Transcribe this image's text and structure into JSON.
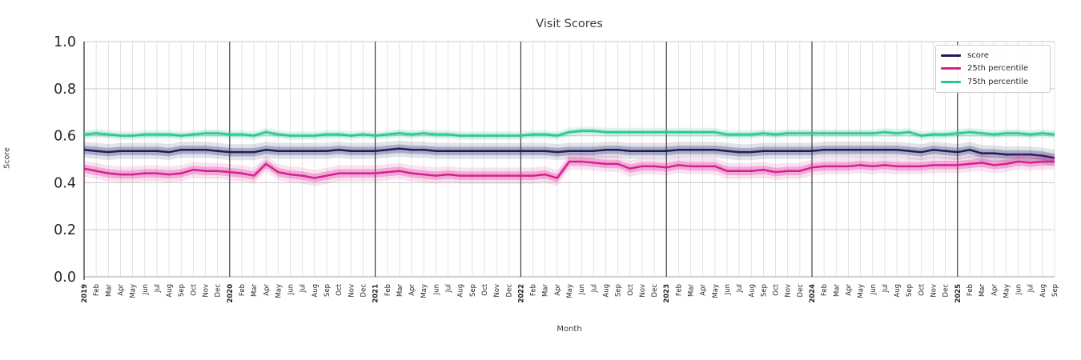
{
  "chart_data": {
    "type": "line",
    "title": "Visit Scores",
    "xlabel": "Month",
    "ylabel": "Score",
    "ylim": [
      0.0,
      1.0
    ],
    "yticks": [
      "0.0",
      "0.2",
      "0.4",
      "0.6",
      "0.8",
      "1.0"
    ],
    "grid": true,
    "legend_position": "upper right",
    "x_labels": [
      "2019",
      "Feb",
      "Mar",
      "Apr",
      "May",
      "Jun",
      "Jul",
      "Aug",
      "Sep",
      "Oct",
      "Nov",
      "Dec",
      "2020",
      "Feb",
      "Mar",
      "Apr",
      "May",
      "Jun",
      "Jul",
      "Aug",
      "Sep",
      "Oct",
      "Nov",
      "Dec",
      "2021",
      "Feb",
      "Mar",
      "Apr",
      "May",
      "Jun",
      "Jul",
      "Aug",
      "Sep",
      "Oct",
      "Nov",
      "Dec",
      "2022",
      "Feb",
      "Mar",
      "Apr",
      "May",
      "Jun",
      "Jul",
      "Aug",
      "Sep",
      "Oct",
      "Nov",
      "Dec",
      "2023",
      "Feb",
      "Mar",
      "Apr",
      "May",
      "Jun",
      "Jul",
      "Aug",
      "Sep",
      "Oct",
      "Nov",
      "Dec",
      "2024",
      "Feb",
      "Mar",
      "Apr",
      "May",
      "Jun",
      "Jul",
      "Aug",
      "Sep",
      "Oct",
      "Nov",
      "Dec",
      "2025",
      "Feb",
      "Mar",
      "Apr",
      "May",
      "Jun",
      "Jul",
      "Aug",
      "Sep"
    ],
    "year_line_indices": [
      12,
      24,
      36,
      48,
      60,
      72
    ],
    "series": [
      {
        "name": "score",
        "color": "#1d1d5c",
        "band_delta": 0.018,
        "values": [
          0.54,
          0.535,
          0.53,
          0.535,
          0.535,
          0.535,
          0.535,
          0.53,
          0.54,
          0.54,
          0.54,
          0.535,
          0.53,
          0.53,
          0.53,
          0.54,
          0.535,
          0.535,
          0.535,
          0.535,
          0.535,
          0.54,
          0.535,
          0.535,
          0.535,
          0.54,
          0.545,
          0.54,
          0.54,
          0.535,
          0.535,
          0.535,
          0.535,
          0.535,
          0.535,
          0.535,
          0.535,
          0.535,
          0.535,
          0.53,
          0.535,
          0.535,
          0.535,
          0.54,
          0.54,
          0.535,
          0.535,
          0.535,
          0.535,
          0.54,
          0.54,
          0.54,
          0.54,
          0.535,
          0.53,
          0.53,
          0.535,
          0.535,
          0.535,
          0.535,
          0.535,
          0.54,
          0.54,
          0.54,
          0.54,
          0.54,
          0.54,
          0.54,
          0.535,
          0.53,
          0.54,
          0.535,
          0.53,
          0.54,
          0.525,
          0.525,
          0.52,
          0.52,
          0.52,
          0.515,
          0.505
        ]
      },
      {
        "name": "25th percentile",
        "color": "#d6208f",
        "band_delta": 0.018,
        "values": [
          0.46,
          0.45,
          0.44,
          0.435,
          0.435,
          0.44,
          0.44,
          0.435,
          0.44,
          0.455,
          0.45,
          0.45,
          0.445,
          0.44,
          0.43,
          0.48,
          0.445,
          0.435,
          0.43,
          0.42,
          0.43,
          0.44,
          0.44,
          0.44,
          0.44,
          0.445,
          0.45,
          0.44,
          0.435,
          0.43,
          0.435,
          0.43,
          0.43,
          0.43,
          0.43,
          0.43,
          0.43,
          0.43,
          0.435,
          0.42,
          0.49,
          0.49,
          0.485,
          0.48,
          0.48,
          0.46,
          0.47,
          0.47,
          0.465,
          0.475,
          0.47,
          0.47,
          0.47,
          0.45,
          0.45,
          0.45,
          0.455,
          0.445,
          0.45,
          0.45,
          0.465,
          0.47,
          0.47,
          0.47,
          0.475,
          0.47,
          0.475,
          0.47,
          0.47,
          0.47,
          0.475,
          0.475,
          0.475,
          0.48,
          0.485,
          0.475,
          0.48,
          0.49,
          0.485,
          0.49,
          0.49
        ]
      },
      {
        "name": "75th percentile",
        "color": "#2cc593",
        "band_delta": 0.01,
        "values": [
          0.605,
          0.61,
          0.605,
          0.6,
          0.6,
          0.605,
          0.605,
          0.605,
          0.6,
          0.605,
          0.61,
          0.61,
          0.605,
          0.605,
          0.6,
          0.615,
          0.605,
          0.6,
          0.6,
          0.6,
          0.605,
          0.605,
          0.6,
          0.605,
          0.6,
          0.605,
          0.61,
          0.605,
          0.61,
          0.605,
          0.605,
          0.6,
          0.6,
          0.6,
          0.6,
          0.6,
          0.6,
          0.605,
          0.605,
          0.6,
          0.615,
          0.62,
          0.62,
          0.615,
          0.615,
          0.615,
          0.615,
          0.615,
          0.615,
          0.615,
          0.615,
          0.615,
          0.615,
          0.605,
          0.605,
          0.605,
          0.61,
          0.605,
          0.61,
          0.61,
          0.61,
          0.61,
          0.61,
          0.61,
          0.61,
          0.61,
          0.615,
          0.61,
          0.615,
          0.6,
          0.605,
          0.605,
          0.61,
          0.615,
          0.61,
          0.605,
          0.61,
          0.61,
          0.605,
          0.61,
          0.605
        ]
      }
    ]
  }
}
